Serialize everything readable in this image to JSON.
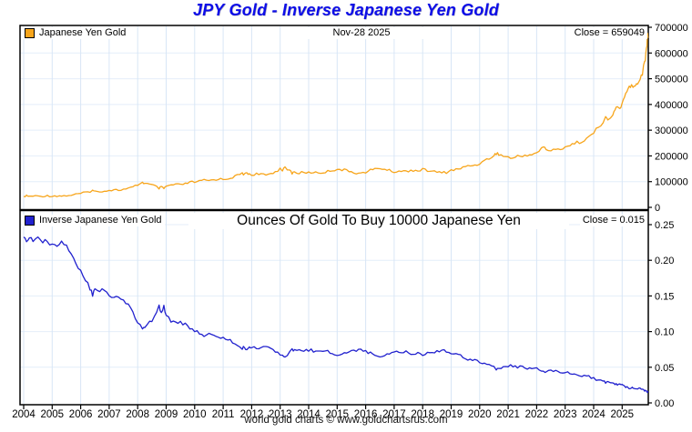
{
  "title": "JPY Gold - Inverse Japanese Yen Gold",
  "footer": "world gold charts © www.goldchartsrus.com",
  "colors": {
    "title_text": "#0D0DE8",
    "gold_series": "#F7A51B",
    "inverse_series": "#2121CE",
    "grid_vertical": "#D8E6F6",
    "grid_horizontal": "#E4EEFA",
    "axis": "#000000"
  },
  "panel1": {
    "legend_label": "Japanese Yen Gold",
    "date_label": "Nov-28  2025",
    "close_label": "Close = 659049"
  },
  "panel2": {
    "legend_label": "Inverse Japanese Yen Gold",
    "subtitle": "Ounces Of Gold To Buy 10000 Japanese Yen",
    "close_label": "Close = 0.015"
  },
  "x_axis": {
    "years": [
      2004,
      2005,
      2006,
      2007,
      2008,
      2009,
      2010,
      2011,
      2012,
      2013,
      2014,
      2015,
      2016,
      2017,
      2018,
      2019,
      2020,
      2021,
      2022,
      2023,
      2024,
      2025
    ]
  },
  "chart_data": [
    {
      "type": "line",
      "name": "Japanese Yen Gold",
      "ylabel_side": "right",
      "ylim": [
        0,
        700000
      ],
      "yticks": [
        0,
        100000,
        200000,
        300000,
        400000,
        500000,
        600000,
        700000
      ],
      "ytick_labels": [
        "0",
        "100000",
        "200000",
        "300000",
        "400000",
        "500000",
        "600000",
        "700000"
      ],
      "xlim": [
        2004,
        2026
      ],
      "close": 659049,
      "points": [
        [
          2004.0,
          43000
        ],
        [
          2004.1,
          44500
        ],
        [
          2004.2,
          42500
        ],
        [
          2004.33,
          44000
        ],
        [
          2004.5,
          43200
        ],
        [
          2004.67,
          43800
        ],
        [
          2004.83,
          44800
        ],
        [
          2005.0,
          44200
        ],
        [
          2005.17,
          44800
        ],
        [
          2005.33,
          44300
        ],
        [
          2005.5,
          45500
        ],
        [
          2005.67,
          47500
        ],
        [
          2005.83,
          50500
        ],
        [
          2006.0,
          54000
        ],
        [
          2006.17,
          57500
        ],
        [
          2006.33,
          62000
        ],
        [
          2006.42,
          65500
        ],
        [
          2006.5,
          61500
        ],
        [
          2006.67,
          63500
        ],
        [
          2006.83,
          62500
        ],
        [
          2007.0,
          66500
        ],
        [
          2007.17,
          68500
        ],
        [
          2007.33,
          67000
        ],
        [
          2007.5,
          69500
        ],
        [
          2007.67,
          72500
        ],
        [
          2007.83,
          78500
        ],
        [
          2008.0,
          88000
        ],
        [
          2008.17,
          97000
        ],
        [
          2008.25,
          93000
        ],
        [
          2008.42,
          89000
        ],
        [
          2008.58,
          84000
        ],
        [
          2008.75,
          74000
        ],
        [
          2008.83,
          78000
        ],
        [
          2008.92,
          73500
        ],
        [
          2009.0,
          81000
        ],
        [
          2009.17,
          86500
        ],
        [
          2009.33,
          88500
        ],
        [
          2009.5,
          87500
        ],
        [
          2009.67,
          91500
        ],
        [
          2009.83,
          97500
        ],
        [
          2010.0,
          98500
        ],
        [
          2010.17,
          101000
        ],
        [
          2010.33,
          105500
        ],
        [
          2010.5,
          104000
        ],
        [
          2010.67,
          107000
        ],
        [
          2010.83,
          110500
        ],
        [
          2011.0,
          108500
        ],
        [
          2011.17,
          112000
        ],
        [
          2011.33,
          117500
        ],
        [
          2011.5,
          123500
        ],
        [
          2011.67,
          132500
        ],
        [
          2011.75,
          127000
        ],
        [
          2011.83,
          134500
        ],
        [
          2011.92,
          129500
        ],
        [
          2012.0,
          126500
        ],
        [
          2012.17,
          130500
        ],
        [
          2012.33,
          127000
        ],
        [
          2012.5,
          125500
        ],
        [
          2012.67,
          131500
        ],
        [
          2012.83,
          138500
        ],
        [
          2013.0,
          150500
        ],
        [
          2013.08,
          146000
        ],
        [
          2013.17,
          152500
        ],
        [
          2013.33,
          143500
        ],
        [
          2013.42,
          133500
        ],
        [
          2013.5,
          137500
        ],
        [
          2013.67,
          133000
        ],
        [
          2013.83,
          136500
        ],
        [
          2014.0,
          134500
        ],
        [
          2014.17,
          137500
        ],
        [
          2014.33,
          133500
        ],
        [
          2014.5,
          136000
        ],
        [
          2014.67,
          139500
        ],
        [
          2014.83,
          144500
        ],
        [
          2015.0,
          148500
        ],
        [
          2015.17,
          146500
        ],
        [
          2015.33,
          142500
        ],
        [
          2015.5,
          139000
        ],
        [
          2015.67,
          134500
        ],
        [
          2015.83,
          131500
        ],
        [
          2016.0,
          137500
        ],
        [
          2016.17,
          144500
        ],
        [
          2016.33,
          148500
        ],
        [
          2016.5,
          152500
        ],
        [
          2016.67,
          148000
        ],
        [
          2016.83,
          143000
        ],
        [
          2017.0,
          138500
        ],
        [
          2017.17,
          141500
        ],
        [
          2017.33,
          139500
        ],
        [
          2017.5,
          142500
        ],
        [
          2017.67,
          144500
        ],
        [
          2017.83,
          143000
        ],
        [
          2018.0,
          146500
        ],
        [
          2018.17,
          143500
        ],
        [
          2018.33,
          140500
        ],
        [
          2018.5,
          137000
        ],
        [
          2018.67,
          134500
        ],
        [
          2018.83,
          136500
        ],
        [
          2019.0,
          144500
        ],
        [
          2019.17,
          147000
        ],
        [
          2019.33,
          150500
        ],
        [
          2019.5,
          158500
        ],
        [
          2019.67,
          164500
        ],
        [
          2019.83,
          162500
        ],
        [
          2020.0,
          172500
        ],
        [
          2020.17,
          180500
        ],
        [
          2020.33,
          190500
        ],
        [
          2020.5,
          201500
        ],
        [
          2020.58,
          210500
        ],
        [
          2020.67,
          206500
        ],
        [
          2020.83,
          199500
        ],
        [
          2021.0,
          194500
        ],
        [
          2021.17,
          191500
        ],
        [
          2021.33,
          197500
        ],
        [
          2021.5,
          200500
        ],
        [
          2021.67,
          203500
        ],
        [
          2021.83,
          206500
        ],
        [
          2022.0,
          210500
        ],
        [
          2022.17,
          228500
        ],
        [
          2022.25,
          236500
        ],
        [
          2022.33,
          226500
        ],
        [
          2022.5,
          219500
        ],
        [
          2022.67,
          223500
        ],
        [
          2022.83,
          227500
        ],
        [
          2023.0,
          235500
        ],
        [
          2023.17,
          242500
        ],
        [
          2023.33,
          248500
        ],
        [
          2023.5,
          254500
        ],
        [
          2023.67,
          262500
        ],
        [
          2023.83,
          271500
        ],
        [
          2024.0,
          289500
        ],
        [
          2024.17,
          312500
        ],
        [
          2024.33,
          334500
        ],
        [
          2024.42,
          345500
        ],
        [
          2024.5,
          341500
        ],
        [
          2024.67,
          356500
        ],
        [
          2024.75,
          379500
        ],
        [
          2024.83,
          391500
        ],
        [
          2024.92,
          383500
        ],
        [
          2025.0,
          404500
        ],
        [
          2025.08,
          425500
        ],
        [
          2025.17,
          447500
        ],
        [
          2025.25,
          468500
        ],
        [
          2025.33,
          477500
        ],
        [
          2025.38,
          461500
        ],
        [
          2025.46,
          475500
        ],
        [
          2025.54,
          486500
        ],
        [
          2025.63,
          498500
        ],
        [
          2025.71,
          523500
        ],
        [
          2025.79,
          563500
        ],
        [
          2025.83,
          592500
        ],
        [
          2025.87,
          635500
        ],
        [
          2025.89,
          678500
        ],
        [
          2025.91,
          659049
        ]
      ]
    },
    {
      "type": "line",
      "name": "Inverse Japanese Yen Gold",
      "ylabel_side": "right",
      "ylim": [
        0,
        0.25
      ],
      "yticks": [
        0,
        0.05,
        0.1,
        0.15,
        0.2,
        0.25
      ],
      "ytick_labels": [
        "0.00",
        "0.05",
        "0.10",
        "0.15",
        "0.20",
        "0.25"
      ],
      "xlim": [
        2004,
        2026
      ],
      "close": 0.015,
      "points": [
        [
          2004.0,
          0.2326
        ],
        [
          2004.1,
          0.2247
        ],
        [
          2004.2,
          0.2353
        ],
        [
          2004.33,
          0.2273
        ],
        [
          2004.5,
          0.2315
        ],
        [
          2004.67,
          0.2283
        ],
        [
          2004.83,
          0.2232
        ],
        [
          2005.0,
          0.2262
        ],
        [
          2005.17,
          0.2232
        ],
        [
          2005.33,
          0.2257
        ],
        [
          2005.5,
          0.2198
        ],
        [
          2005.67,
          0.2105
        ],
        [
          2005.83,
          0.198
        ],
        [
          2006.0,
          0.1852
        ],
        [
          2006.17,
          0.1739
        ],
        [
          2006.33,
          0.1613
        ],
        [
          2006.42,
          0.1527
        ],
        [
          2006.5,
          0.1626
        ],
        [
          2006.67,
          0.1575
        ],
        [
          2006.83,
          0.16
        ],
        [
          2007.0,
          0.1504
        ],
        [
          2007.17,
          0.146
        ],
        [
          2007.33,
          0.1493
        ],
        [
          2007.5,
          0.1439
        ],
        [
          2007.67,
          0.1379
        ],
        [
          2007.83,
          0.1274
        ],
        [
          2008.0,
          0.1136
        ],
        [
          2008.17,
          0.1031
        ],
        [
          2008.25,
          0.1075
        ],
        [
          2008.42,
          0.1124
        ],
        [
          2008.58,
          0.119
        ],
        [
          2008.75,
          0.1351
        ],
        [
          2008.83,
          0.1282
        ],
        [
          2008.92,
          0.1361
        ],
        [
          2009.0,
          0.1235
        ],
        [
          2009.17,
          0.1156
        ],
        [
          2009.33,
          0.113
        ],
        [
          2009.5,
          0.1143
        ],
        [
          2009.67,
          0.1093
        ],
        [
          2009.83,
          0.1026
        ],
        [
          2010.0,
          0.1015
        ],
        [
          2010.17,
          0.099
        ],
        [
          2010.33,
          0.0948
        ],
        [
          2010.5,
          0.0962
        ],
        [
          2010.67,
          0.0935
        ],
        [
          2010.83,
          0.0905
        ],
        [
          2011.0,
          0.0922
        ],
        [
          2011.17,
          0.0893
        ],
        [
          2011.33,
          0.0851
        ],
        [
          2011.5,
          0.081
        ],
        [
          2011.67,
          0.0755
        ],
        [
          2011.75,
          0.0787
        ],
        [
          2011.83,
          0.0743
        ],
        [
          2011.92,
          0.0772
        ],
        [
          2012.0,
          0.0791
        ],
        [
          2012.17,
          0.0766
        ],
        [
          2012.33,
          0.0787
        ],
        [
          2012.5,
          0.0797
        ],
        [
          2012.67,
          0.076
        ],
        [
          2012.83,
          0.0722
        ],
        [
          2013.0,
          0.0664
        ],
        [
          2013.08,
          0.0685
        ],
        [
          2013.17,
          0.0656
        ],
        [
          2013.33,
          0.0697
        ],
        [
          2013.42,
          0.0749
        ],
        [
          2013.5,
          0.0727
        ],
        [
          2013.67,
          0.0752
        ],
        [
          2013.83,
          0.0733
        ],
        [
          2014.0,
          0.0743
        ],
        [
          2014.17,
          0.0727
        ],
        [
          2014.33,
          0.0749
        ],
        [
          2014.5,
          0.0735
        ],
        [
          2014.67,
          0.0717
        ],
        [
          2014.83,
          0.0692
        ],
        [
          2015.0,
          0.0673
        ],
        [
          2015.17,
          0.0683
        ],
        [
          2015.33,
          0.0702
        ],
        [
          2015.5,
          0.0719
        ],
        [
          2015.67,
          0.0743
        ],
        [
          2015.83,
          0.076
        ],
        [
          2016.0,
          0.0727
        ],
        [
          2016.17,
          0.0692
        ],
        [
          2016.33,
          0.0673
        ],
        [
          2016.5,
          0.0656
        ],
        [
          2016.67,
          0.0676
        ],
        [
          2016.83,
          0.0699
        ],
        [
          2017.0,
          0.0722
        ],
        [
          2017.17,
          0.0707
        ],
        [
          2017.33,
          0.0717
        ],
        [
          2017.5,
          0.0702
        ],
        [
          2017.67,
          0.0692
        ],
        [
          2017.83,
          0.0699
        ],
        [
          2018.0,
          0.0683
        ],
        [
          2018.17,
          0.0697
        ],
        [
          2018.33,
          0.0712
        ],
        [
          2018.5,
          0.073
        ],
        [
          2018.67,
          0.0743
        ],
        [
          2018.83,
          0.0733
        ],
        [
          2019.0,
          0.0692
        ],
        [
          2019.17,
          0.068
        ],
        [
          2019.33,
          0.0664
        ],
        [
          2019.5,
          0.0631
        ],
        [
          2019.67,
          0.0608
        ],
        [
          2019.83,
          0.0615
        ],
        [
          2020.0,
          0.058
        ],
        [
          2020.17,
          0.0554
        ],
        [
          2020.33,
          0.0525
        ],
        [
          2020.5,
          0.0496
        ],
        [
          2020.58,
          0.0475
        ],
        [
          2020.67,
          0.0484
        ],
        [
          2020.83,
          0.0501
        ],
        [
          2021.0,
          0.0514
        ],
        [
          2021.17,
          0.0522
        ],
        [
          2021.33,
          0.0506
        ],
        [
          2021.5,
          0.0499
        ],
        [
          2021.67,
          0.0491
        ],
        [
          2021.83,
          0.0484
        ],
        [
          2022.0,
          0.0475
        ],
        [
          2022.17,
          0.0438
        ],
        [
          2022.25,
          0.0423
        ],
        [
          2022.33,
          0.0442
        ],
        [
          2022.5,
          0.0456
        ],
        [
          2022.67,
          0.0447
        ],
        [
          2022.83,
          0.044
        ],
        [
          2023.0,
          0.0425
        ],
        [
          2023.17,
          0.0412
        ],
        [
          2023.33,
          0.0402
        ],
        [
          2023.5,
          0.0393
        ],
        [
          2023.67,
          0.0381
        ],
        [
          2023.83,
          0.0368
        ],
        [
          2024.0,
          0.0345
        ],
        [
          2024.17,
          0.032
        ],
        [
          2024.33,
          0.0299
        ],
        [
          2024.42,
          0.0289
        ],
        [
          2024.5,
          0.0293
        ],
        [
          2024.67,
          0.0281
        ],
        [
          2024.75,
          0.0264
        ],
        [
          2024.83,
          0.0255
        ],
        [
          2024.92,
          0.0261
        ],
        [
          2025.0,
          0.0247
        ],
        [
          2025.08,
          0.0235
        ],
        [
          2025.17,
          0.0223
        ],
        [
          2025.25,
          0.0213
        ],
        [
          2025.33,
          0.0209
        ],
        [
          2025.38,
          0.0217
        ],
        [
          2025.46,
          0.021
        ],
        [
          2025.54,
          0.0206
        ],
        [
          2025.63,
          0.0201
        ],
        [
          2025.71,
          0.0191
        ],
        [
          2025.79,
          0.0177
        ],
        [
          2025.83,
          0.0169
        ],
        [
          2025.87,
          0.0157
        ],
        [
          2025.89,
          0.0147
        ],
        [
          2025.91,
          0.0152
        ]
      ]
    }
  ]
}
